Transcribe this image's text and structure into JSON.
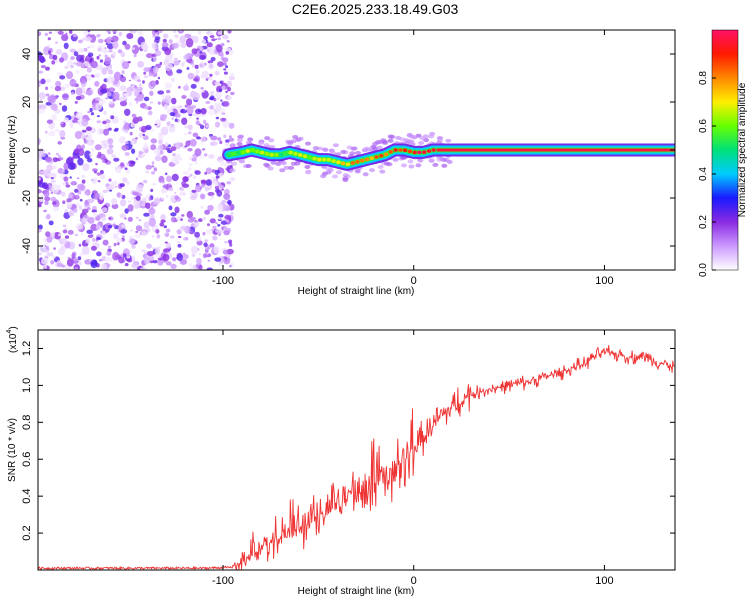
{
  "title": "C2E6.2025.233.18.49.G03",
  "chart_data": [
    {
      "type": "heatmap",
      "xlabel": "Height of straight line (km)",
      "ylabel": "Frequency (Hz)",
      "xlim": [
        -197,
        137
      ],
      "ylim": [
        -50,
        50
      ],
      "xticks": [
        -100,
        0,
        100
      ],
      "xtick_labels": [
        "-100",
        "0",
        "100"
      ],
      "yticks": [
        -40,
        -20,
        0,
        20,
        40
      ],
      "ytick_labels": [
        "-40",
        "-20",
        "0",
        "20",
        "40"
      ],
      "noise_region_x": [
        -197,
        -95
      ],
      "ridge": {
        "x": [
          -97,
          -90,
          -85,
          -80,
          -75,
          -70,
          -65,
          -60,
          -55,
          -50,
          -45,
          -40,
          -35,
          -30,
          -25,
          -20,
          -15,
          -10,
          -5,
          0,
          5,
          10,
          15,
          137
        ],
        "frequency": [
          -2,
          -1,
          0,
          -1,
          -2,
          -2,
          -1,
          -2,
          -3,
          -4,
          -4,
          -5,
          -6,
          -5,
          -4,
          -3,
          -2,
          0,
          0,
          -1,
          -1,
          0,
          0,
          0
        ],
        "amplitude": [
          0.55,
          0.6,
          0.65,
          0.6,
          0.6,
          0.55,
          0.6,
          0.62,
          0.65,
          0.7,
          0.72,
          0.75,
          0.75,
          0.78,
          0.8,
          0.82,
          0.85,
          0.9,
          0.9,
          0.92,
          0.95,
          0.97,
          1,
          1
        ]
      },
      "colorbar": {
        "label": "Normalized spectral amplitude",
        "range": [
          0,
          1
        ],
        "ticks": [
          0,
          0.2,
          0.4,
          0.6,
          0.8
        ],
        "tick_labels": [
          "0.0",
          "0.2",
          "0.4",
          "0.6",
          "0.8"
        ],
        "colors": [
          "#ffffff",
          "#cc99ff",
          "#8a2be2",
          "#1a1aff",
          "#00ccff",
          "#00e07a",
          "#66ff00",
          "#ffee00",
          "#ff8800",
          "#ff1a00",
          "#ff1166"
        ]
      }
    },
    {
      "type": "line",
      "xlabel": "Height of straight line (km)",
      "ylabel": "SNR (10 * v/v)",
      "y_multiplier_label": "(x10",
      "y_multiplier_exp": "4",
      "y_multiplier_close": ")",
      "xlim": [
        -197,
        137
      ],
      "ylim": [
        0,
        1.3
      ],
      "xticks": [
        -100,
        0,
        100
      ],
      "xtick_labels": [
        "-100",
        "0",
        "100"
      ],
      "yticks": [
        0.2,
        0.4,
        0.6,
        0.8,
        1.0,
        1.2
      ],
      "ytick_labels": [
        "0.2",
        "0.4",
        "0.6",
        "0.8",
        "1.0",
        "1.2"
      ],
      "color": "#ee3333",
      "series": [
        {
          "name": "SNR",
          "x": [
            -197,
            -170,
            -140,
            -110,
            -95,
            -90,
            -85,
            -80,
            -75,
            -70,
            -65,
            -60,
            -55,
            -50,
            -45,
            -40,
            -35,
            -30,
            -25,
            -20,
            -15,
            -10,
            -5,
            0,
            5,
            10,
            15,
            20,
            25,
            30,
            40,
            50,
            60,
            70,
            80,
            90,
            95,
            100,
            105,
            110,
            115,
            120,
            125,
            130,
            137
          ],
          "y": [
            0.01,
            0.01,
            0.01,
            0.01,
            0.015,
            0.03,
            0.07,
            0.12,
            0.15,
            0.18,
            0.2,
            0.23,
            0.26,
            0.3,
            0.33,
            0.36,
            0.4,
            0.42,
            0.44,
            0.47,
            0.5,
            0.54,
            0.6,
            0.66,
            0.72,
            0.78,
            0.84,
            0.88,
            0.92,
            0.95,
            0.98,
            1.0,
            1.02,
            1.05,
            1.08,
            1.12,
            1.16,
            1.18,
            1.17,
            1.16,
            1.15,
            1.16,
            1.14,
            1.12,
            1.1
          ]
        }
      ]
    }
  ]
}
